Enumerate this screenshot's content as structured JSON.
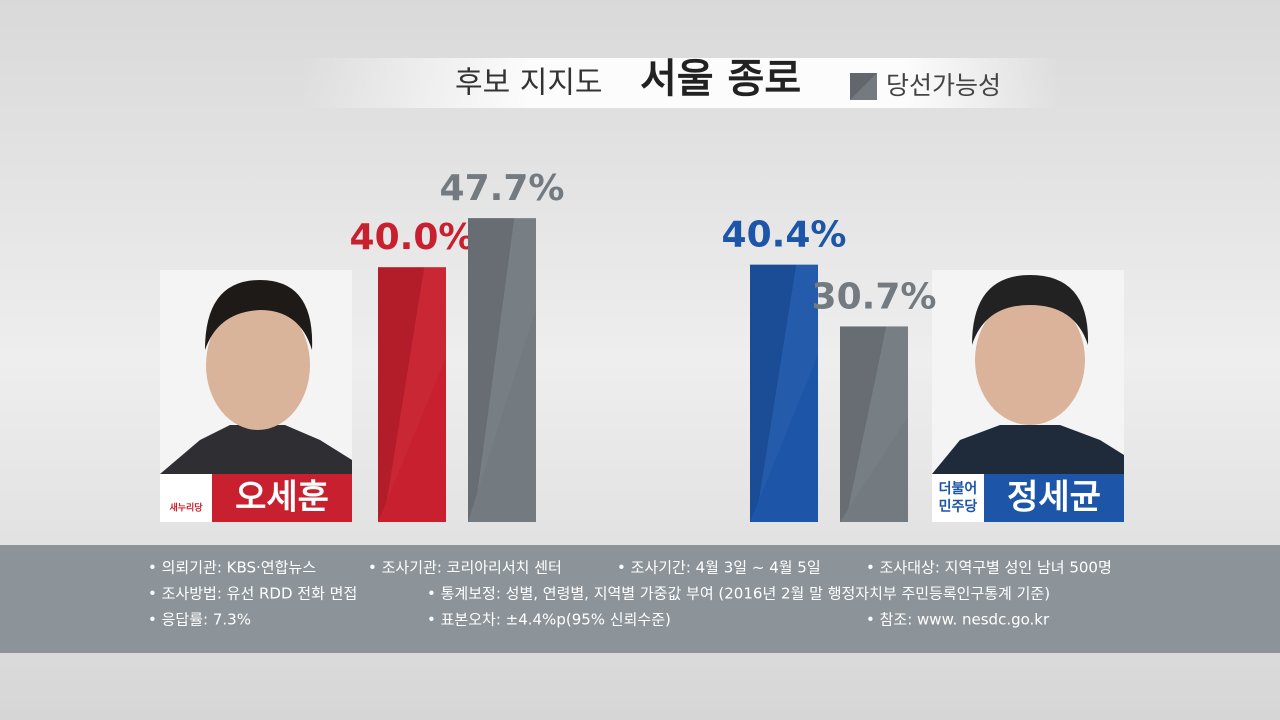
{
  "chart_data": {
    "type": "bar",
    "title": "후보 지지도",
    "subtitle": "서울 종로",
    "categories": [
      "오세훈",
      "정세균"
    ],
    "parties": [
      [
        "새누리당"
      ],
      [
        "더불어",
        "민주당"
      ]
    ],
    "series": [
      {
        "colors": [
          "#c8202e",
          "#1d56a8"
        ],
        "values": [
          40.0,
          40.4
        ],
        "value_labels": [
          "40.0%",
          "40.4%"
        ]
      },
      {
        "name": "당선가능성",
        "color": "#737a80",
        "values": [
          47.7,
          30.7
        ],
        "value_labels": [
          "47.7%",
          "30.7%"
        ]
      }
    ]
  },
  "notes": [
    [
      "• 의뢰기관:  KBS·연합뉴스",
      "• 조사기관: 코리아리서치 센터",
      "• 조사기간: 4월 3일 ~ 4월 5일",
      "• 조사대상: 지역구별 성인 남녀 500명"
    ],
    [
      "• 조사방법: 유선 RDD 전화 면접",
      "• 통계보정: 성별, 연령별, 지역별 가중값 부여 (2016년 2월 말 행정자치부 주민등록인구통계 기준)"
    ],
    [
      "• 응답률: 7.3%",
      "• 표본오차:  ±4.4%p(95% 신뢰수준)",
      "• 참조: www. nesdc.go.kr"
    ]
  ]
}
